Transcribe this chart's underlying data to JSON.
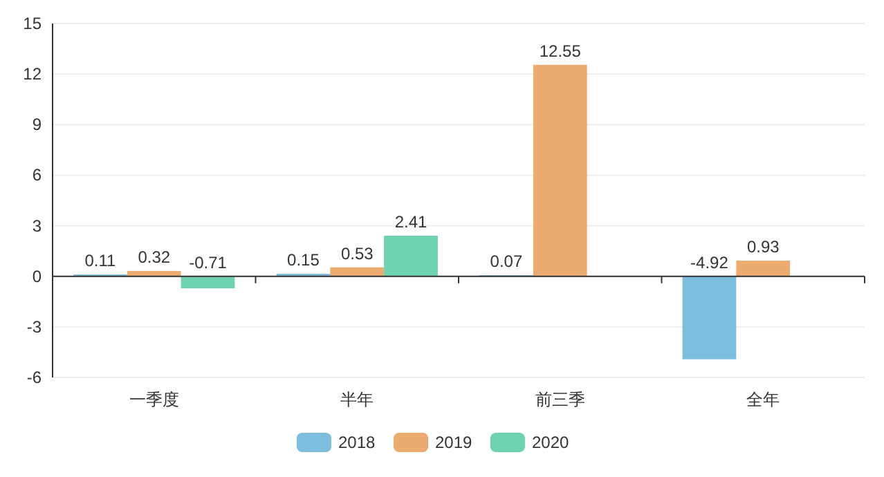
{
  "chart_data": {
    "type": "bar",
    "categories": [
      "一季度",
      "半年",
      "前三季",
      "全年"
    ],
    "series": [
      {
        "name": "2018",
        "color": "#7dbedd",
        "values": [
          0.11,
          0.15,
          0.07,
          -4.92
        ]
      },
      {
        "name": "2019",
        "color": "#edac6f",
        "values": [
          0.32,
          0.53,
          12.55,
          0.93
        ]
      },
      {
        "name": "2020",
        "color": "#6fd3b2",
        "values": [
          -0.71,
          2.41,
          null,
          null
        ]
      }
    ],
    "ylim": [
      -6,
      15
    ],
    "yticks": [
      -6,
      -3,
      0,
      3,
      6,
      9,
      12,
      15
    ],
    "grid": "y",
    "legend": "bottom",
    "data_labels": true
  }
}
